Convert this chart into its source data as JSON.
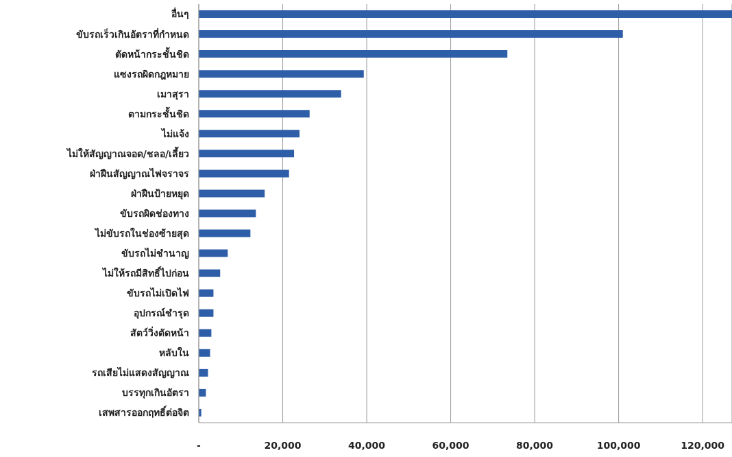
{
  "chart_data": {
    "type": "bar",
    "orientation": "horizontal",
    "categories": [
      "อื่นๆ",
      "ขับรถเร็วเกินอัตราที่กำหนด",
      "ตัดหน้ากระชั้นชิด",
      "แซงรถผิดกฎหมาย",
      "เมาสุรา",
      "ตามกระชั้นชิด",
      "ไม่แจ้ง",
      "ไม่ให้สัญญาณจอด/ชลอ/เลี้ยว",
      "ฝ่าฝืนสัญญาณไฟจราจร",
      "ฝ่าฝืนป้ายหยุด",
      "ขับรถผิดช่องทาง",
      "ไม่ขับรถในช่องซ้ายสุด",
      "ขับรถไม่ชำนาญ",
      "ไม่ให้รถมีสิทธิ์ไปก่อน",
      "ขับรถไม่เปิดไฟ",
      "อุปกรณ์ชำรุด",
      "สัตว์วิ่งตัดหน้า",
      "หลับใน",
      "รถเสียไม่แสดงสัญญาณ",
      "บรรทุกเกินอัตรา",
      "เสพสารออกฤทธิ์ต่อจิต"
    ],
    "values": [
      127000,
      101000,
      73500,
      39300,
      33900,
      26400,
      24000,
      22700,
      21500,
      15700,
      13600,
      12300,
      6900,
      5100,
      3500,
      3500,
      3000,
      2700,
      2200,
      1700,
      600
    ],
    "color": "#2e5ea8",
    "xlim": [
      0,
      127000
    ],
    "xticks": [
      {
        "value": 0,
        "label": "-"
      },
      {
        "value": 20000,
        "label": "20,000"
      },
      {
        "value": 40000,
        "label": "40,000"
      },
      {
        "value": 60000,
        "label": "60,000"
      },
      {
        "value": 80000,
        "label": "80,000"
      },
      {
        "value": 100000,
        "label": "100,000"
      },
      {
        "value": 120000,
        "label": "120,000"
      }
    ],
    "grid": "x",
    "legend": false
  }
}
